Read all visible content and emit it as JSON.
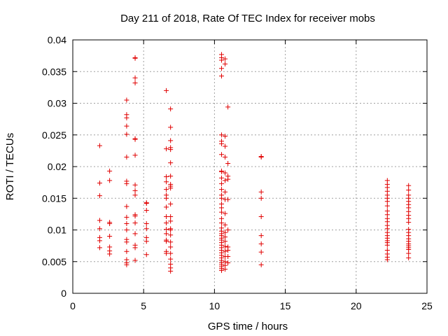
{
  "chart_data": {
    "type": "scatter",
    "title": "Day 211 of 2018, Rate Of TEC Index for receiver mobs",
    "xlabel": "GPS time / hours",
    "ylabel": "ROTI / TECUs",
    "xlim": [
      0,
      25
    ],
    "ylim": [
      0,
      0.04
    ],
    "grid": true,
    "x_ticks": [
      0,
      5,
      10,
      15,
      20,
      25
    ],
    "x_tick_labels": [
      "0",
      "5",
      "10",
      "15",
      "20",
      "25"
    ],
    "y_ticks": [
      0,
      0.005,
      0.01,
      0.015,
      0.02,
      0.025,
      0.03,
      0.035,
      0.04
    ],
    "y_tick_labels": [
      "0",
      "0.005",
      "0.01",
      "0.015",
      "0.02",
      "0.025",
      "0.03",
      "0.035",
      "0.04"
    ],
    "marker": "+",
    "color": "#e00000",
    "series": [
      {
        "name": "ROTI",
        "points": [
          [
            1.9,
            0.0233
          ],
          [
            1.9,
            0.0174
          ],
          [
            1.9,
            0.0154
          ],
          [
            1.9,
            0.0115
          ],
          [
            1.9,
            0.0102
          ],
          [
            1.9,
            0.0088
          ],
          [
            1.9,
            0.0083
          ],
          [
            1.9,
            0.0072
          ],
          [
            2.6,
            0.0193
          ],
          [
            2.6,
            0.0178
          ],
          [
            2.6,
            0.0112
          ],
          [
            2.6,
            0.011
          ],
          [
            2.6,
            0.009
          ],
          [
            2.6,
            0.0073
          ],
          [
            2.6,
            0.0067
          ],
          [
            2.6,
            0.0062
          ],
          [
            3.8,
            0.0305
          ],
          [
            3.8,
            0.0282
          ],
          [
            3.8,
            0.0277
          ],
          [
            3.8,
            0.0264
          ],
          [
            3.8,
            0.0251
          ],
          [
            3.8,
            0.0215
          ],
          [
            3.8,
            0.0177
          ],
          [
            3.8,
            0.0173
          ],
          [
            3.8,
            0.0137
          ],
          [
            3.8,
            0.012
          ],
          [
            3.8,
            0.011
          ],
          [
            3.8,
            0.01
          ],
          [
            3.8,
            0.0085
          ],
          [
            3.8,
            0.0081
          ],
          [
            3.8,
            0.0066
          ],
          [
            3.8,
            0.0053
          ],
          [
            3.8,
            0.0048
          ],
          [
            3.8,
            0.0045
          ],
          [
            4.4,
            0.0372
          ],
          [
            4.4,
            0.0371
          ],
          [
            4.4,
            0.034
          ],
          [
            4.4,
            0.0332
          ],
          [
            4.4,
            0.0244
          ],
          [
            4.4,
            0.0243
          ],
          [
            4.4,
            0.0218
          ],
          [
            4.4,
            0.0171
          ],
          [
            4.4,
            0.0162
          ],
          [
            4.4,
            0.0155
          ],
          [
            4.4,
            0.0124
          ],
          [
            4.4,
            0.0122
          ],
          [
            4.4,
            0.0111
          ],
          [
            4.4,
            0.0094
          ],
          [
            4.4,
            0.0076
          ],
          [
            4.4,
            0.0072
          ],
          [
            4.4,
            0.0052
          ],
          [
            5.2,
            0.0143
          ],
          [
            5.2,
            0.0142
          ],
          [
            5.2,
            0.0131
          ],
          [
            5.2,
            0.011
          ],
          [
            5.2,
            0.0102
          ],
          [
            5.2,
            0.0088
          ],
          [
            5.2,
            0.0082
          ],
          [
            5.2,
            0.0061
          ],
          [
            6.6,
            0.032
          ],
          [
            6.6,
            0.0228
          ],
          [
            6.6,
            0.0184
          ],
          [
            6.6,
            0.0176
          ],
          [
            6.6,
            0.0164
          ],
          [
            6.6,
            0.0155
          ],
          [
            6.6,
            0.015
          ],
          [
            6.6,
            0.0136
          ],
          [
            6.6,
            0.0121
          ],
          [
            6.6,
            0.0111
          ],
          [
            6.6,
            0.0101
          ],
          [
            6.6,
            0.0094
          ],
          [
            6.6,
            0.0084
          ],
          [
            6.6,
            0.0082
          ],
          [
            6.6,
            0.0066
          ],
          [
            6.6,
            0.0063
          ],
          [
            6.9,
            0.0291
          ],
          [
            6.9,
            0.0262
          ],
          [
            6.9,
            0.0241
          ],
          [
            6.9,
            0.023
          ],
          [
            6.9,
            0.0227
          ],
          [
            6.9,
            0.0206
          ],
          [
            6.9,
            0.0185
          ],
          [
            6.9,
            0.0172
          ],
          [
            6.9,
            0.0169
          ],
          [
            6.9,
            0.0166
          ],
          [
            6.9,
            0.0141
          ],
          [
            6.9,
            0.0121
          ],
          [
            6.9,
            0.0114
          ],
          [
            6.9,
            0.0102
          ],
          [
            6.9,
            0.01
          ],
          [
            6.9,
            0.0092
          ],
          [
            6.9,
            0.0081
          ],
          [
            6.9,
            0.0073
          ],
          [
            6.9,
            0.0063
          ],
          [
            6.9,
            0.0054
          ],
          [
            6.9,
            0.0046
          ],
          [
            6.9,
            0.004
          ],
          [
            6.9,
            0.0035
          ],
          [
            10.5,
            0.0377
          ],
          [
            10.5,
            0.0372
          ],
          [
            10.5,
            0.0368
          ],
          [
            10.5,
            0.0355
          ],
          [
            10.5,
            0.0343
          ],
          [
            10.5,
            0.025
          ],
          [
            10.5,
            0.024
          ],
          [
            10.5,
            0.0236
          ],
          [
            10.5,
            0.0219
          ],
          [
            10.5,
            0.0193
          ],
          [
            10.5,
            0.0192
          ],
          [
            10.5,
            0.0182
          ],
          [
            10.5,
            0.0173
          ],
          [
            10.5,
            0.0164
          ],
          [
            10.5,
            0.0155
          ],
          [
            10.5,
            0.015
          ],
          [
            10.5,
            0.0141
          ],
          [
            10.5,
            0.0135
          ],
          [
            10.5,
            0.0128
          ],
          [
            10.5,
            0.0118
          ],
          [
            10.5,
            0.0111
          ],
          [
            10.5,
            0.0103
          ],
          [
            10.5,
            0.0098
          ],
          [
            10.5,
            0.0094
          ],
          [
            10.5,
            0.0091
          ],
          [
            10.5,
            0.0087
          ],
          [
            10.5,
            0.0084
          ],
          [
            10.5,
            0.008
          ],
          [
            10.5,
            0.0076
          ],
          [
            10.5,
            0.0072
          ],
          [
            10.5,
            0.0068
          ],
          [
            10.5,
            0.0064
          ],
          [
            10.5,
            0.006
          ],
          [
            10.5,
            0.0056
          ],
          [
            10.5,
            0.0052
          ],
          [
            10.5,
            0.0048
          ],
          [
            10.5,
            0.0045
          ],
          [
            10.5,
            0.0042
          ],
          [
            10.5,
            0.0039
          ],
          [
            10.5,
            0.0036
          ],
          [
            10.75,
            0.037
          ],
          [
            10.75,
            0.0362
          ],
          [
            10.75,
            0.0248
          ],
          [
            10.75,
            0.0232
          ],
          [
            10.75,
            0.0215
          ],
          [
            10.75,
            0.019
          ],
          [
            10.75,
            0.0178
          ],
          [
            10.75,
            0.016
          ],
          [
            10.75,
            0.0148
          ],
          [
            10.75,
            0.0126
          ],
          [
            10.75,
            0.0108
          ],
          [
            10.75,
            0.0096
          ],
          [
            10.75,
            0.0089
          ],
          [
            10.75,
            0.0082
          ],
          [
            10.75,
            0.0074
          ],
          [
            10.75,
            0.0066
          ],
          [
            10.75,
            0.0058
          ],
          [
            10.75,
            0.005
          ],
          [
            10.75,
            0.0044
          ],
          [
            10.75,
            0.0038
          ],
          [
            10.95,
            0.0294
          ],
          [
            10.95,
            0.0205
          ],
          [
            10.95,
            0.0185
          ],
          [
            10.95,
            0.018
          ],
          [
            10.95,
            0.0148
          ],
          [
            10.95,
            0.01
          ],
          [
            10.95,
            0.0073
          ],
          [
            10.95,
            0.0068
          ],
          [
            10.95,
            0.0058
          ],
          [
            10.95,
            0.0048
          ],
          [
            13.3,
            0.0216
          ],
          [
            13.3,
            0.0215
          ],
          [
            13.3,
            0.016
          ],
          [
            13.3,
            0.015
          ],
          [
            13.3,
            0.0121
          ],
          [
            13.3,
            0.0091
          ],
          [
            13.3,
            0.0078
          ],
          [
            13.3,
            0.0065
          ],
          [
            13.3,
            0.0045
          ],
          [
            22.2,
            0.0178
          ],
          [
            22.2,
            0.0172
          ],
          [
            22.2,
            0.0167
          ],
          [
            22.2,
            0.0161
          ],
          [
            22.2,
            0.0155
          ],
          [
            22.2,
            0.015
          ],
          [
            22.2,
            0.0145
          ],
          [
            22.2,
            0.0138
          ],
          [
            22.2,
            0.013
          ],
          [
            22.2,
            0.0124
          ],
          [
            22.2,
            0.0118
          ],
          [
            22.2,
            0.0113
          ],
          [
            22.2,
            0.0107
          ],
          [
            22.2,
            0.0102
          ],
          [
            22.2,
            0.0096
          ],
          [
            22.2,
            0.0091
          ],
          [
            22.2,
            0.0087
          ],
          [
            22.2,
            0.0083
          ],
          [
            22.2,
            0.008
          ],
          [
            22.2,
            0.0076
          ],
          [
            22.2,
            0.0068
          ],
          [
            22.2,
            0.0062
          ],
          [
            22.2,
            0.0057
          ],
          [
            22.2,
            0.0053
          ],
          [
            23.7,
            0.017
          ],
          [
            23.7,
            0.0163
          ],
          [
            23.7,
            0.0155
          ],
          [
            23.7,
            0.015
          ],
          [
            23.7,
            0.0145
          ],
          [
            23.7,
            0.014
          ],
          [
            23.7,
            0.0135
          ],
          [
            23.7,
            0.0129
          ],
          [
            23.7,
            0.0123
          ],
          [
            23.7,
            0.0118
          ],
          [
            23.7,
            0.0112
          ],
          [
            23.7,
            0.0101
          ],
          [
            23.7,
            0.0096
          ],
          [
            23.7,
            0.0091
          ],
          [
            23.7,
            0.0086
          ],
          [
            23.7,
            0.0082
          ],
          [
            23.7,
            0.0078
          ],
          [
            23.7,
            0.0075
          ],
          [
            23.7,
            0.0072
          ],
          [
            23.7,
            0.0069
          ],
          [
            23.7,
            0.0063
          ],
          [
            23.7,
            0.0056
          ]
        ]
      }
    ]
  }
}
